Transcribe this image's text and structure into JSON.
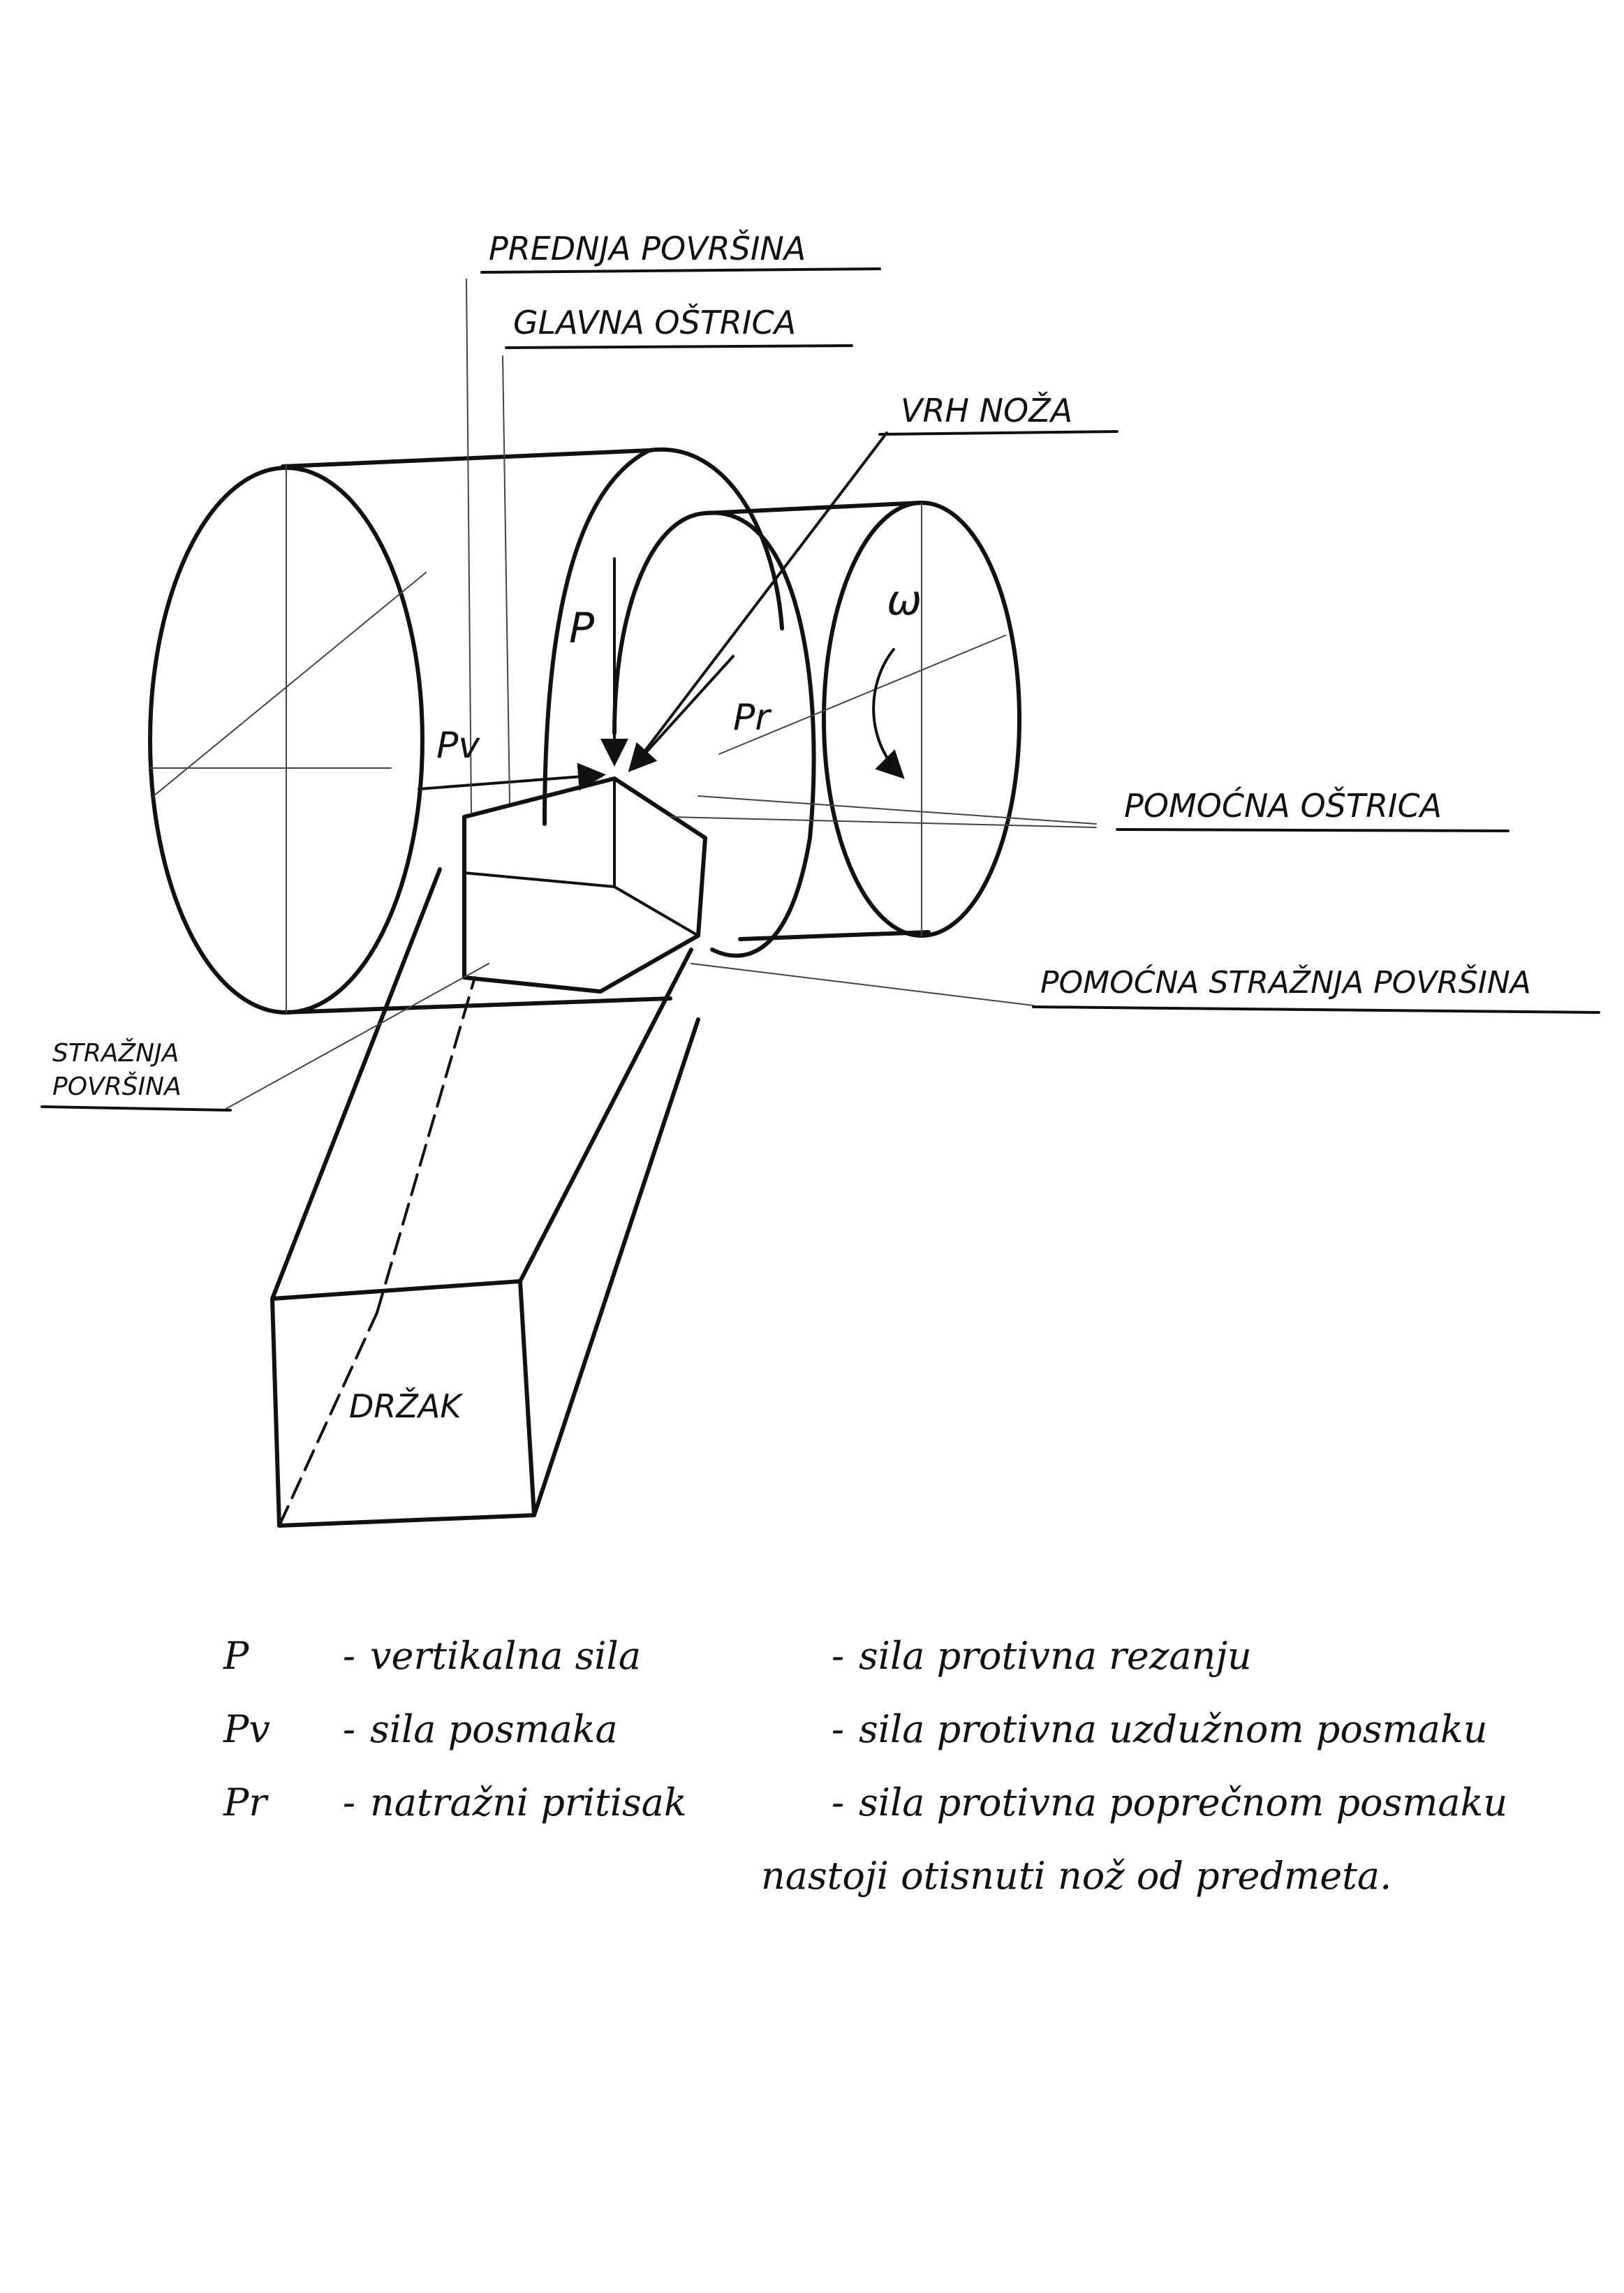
{
  "labels": {
    "prednja_povrsina": "PREDNJA POVRŠINA",
    "glavna_ostrica": "GLAVNA OŠTRICA",
    "vrh_noza": "VRH NOŽA",
    "pomocna_ostrica": "POMOĆNA OŠTRICA",
    "pomocna_strajnja_povrsina": "POMOĆNA STRAŽNJA POVRŠINA",
    "strajnja": "STRAŽNJA",
    "povrsina": "POVRŠINA",
    "drzak": "DRŽAK",
    "force_p": "P",
    "force_pv": "Pv",
    "force_pr": "Pr",
    "omega": "ω"
  },
  "legend": [
    {
      "symbol": "P",
      "term": "vertikalna sila",
      "description": "sila protivna rezanju"
    },
    {
      "symbol": "Pv",
      "term": "sila posmaka",
      "description": "sila protivna uzdužnom posmaku"
    },
    {
      "symbol": "Pr",
      "term": "natražni pritisak",
      "description": "sila protivna poprečnom posmaku",
      "continuation": "nastoji otisnuti nož od predmeta."
    }
  ],
  "separator": "-"
}
